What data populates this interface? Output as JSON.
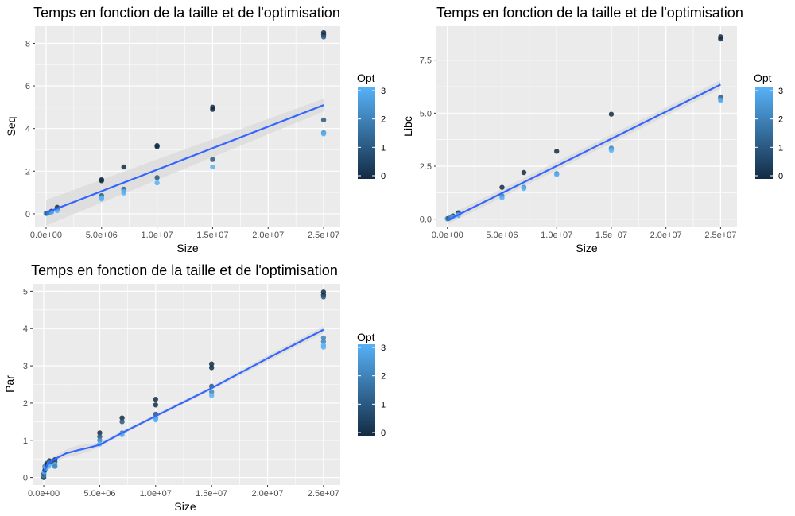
{
  "colors": {
    "panel_bg": "#ebebeb",
    "grid_major": "#ffffff",
    "smooth_line": "#3366ff",
    "ribbon": "#d9d9d9",
    "point_low": "#132b43",
    "point_high": "#56b1f7"
  },
  "chart_data": [
    {
      "type": "scatter",
      "title": "Temps en fonction de la taille et de l'optimisation",
      "xlabel": "Size",
      "ylabel": "Seq",
      "xlim": [
        -1000000,
        26500000
      ],
      "ylim": [
        -0.6,
        8.8
      ],
      "x_ticks": [
        0,
        5000000,
        10000000,
        15000000,
        20000000,
        25000000
      ],
      "x_tick_labels": [
        "0.0e+00",
        "5.0e+06",
        "1.0e+07",
        "1.5e+07",
        "2.0e+07",
        "2.5e+07"
      ],
      "y_ticks": [
        0,
        2,
        4,
        6,
        8
      ],
      "y_tick_labels": [
        "0",
        "2",
        "4",
        "6",
        "8"
      ],
      "legend": {
        "title": "Opt",
        "range": [
          0,
          3
        ],
        "ticks": [
          "0",
          "1",
          "2",
          "3"
        ],
        "placement": "right"
      },
      "points": [
        {
          "x": 0,
          "y": 0.02,
          "opt": 0
        },
        {
          "x": 0,
          "y": 0.01,
          "opt": 3
        },
        {
          "x": 100000,
          "y": 0.03,
          "opt": 1
        },
        {
          "x": 250000,
          "y": 0.05,
          "opt": 2
        },
        {
          "x": 500000,
          "y": 0.12,
          "opt": 0
        },
        {
          "x": 500000,
          "y": 0.08,
          "opt": 3
        },
        {
          "x": 1000000,
          "y": 0.3,
          "opt": 0
        },
        {
          "x": 1000000,
          "y": 0.22,
          "opt": 1
        },
        {
          "x": 1000000,
          "y": 0.15,
          "opt": 3
        },
        {
          "x": 5000000,
          "y": 1.6,
          "opt": 0
        },
        {
          "x": 5000000,
          "y": 1.55,
          "opt": 0
        },
        {
          "x": 5000000,
          "y": 0.85,
          "opt": 1
        },
        {
          "x": 5000000,
          "y": 0.75,
          "opt": 3
        },
        {
          "x": 5000000,
          "y": 0.7,
          "opt": 3
        },
        {
          "x": 7000000,
          "y": 2.2,
          "opt": 0
        },
        {
          "x": 7000000,
          "y": 1.15,
          "opt": 1
        },
        {
          "x": 7000000,
          "y": 1.05,
          "opt": 3
        },
        {
          "x": 7000000,
          "y": 0.98,
          "opt": 3
        },
        {
          "x": 10000000,
          "y": 3.2,
          "opt": 0
        },
        {
          "x": 10000000,
          "y": 3.15,
          "opt": 0
        },
        {
          "x": 10000000,
          "y": 1.7,
          "opt": 1
        },
        {
          "x": 10000000,
          "y": 1.45,
          "opt": 3
        },
        {
          "x": 15000000,
          "y": 5.0,
          "opt": 0
        },
        {
          "x": 15000000,
          "y": 4.9,
          "opt": 0
        },
        {
          "x": 15000000,
          "y": 2.55,
          "opt": 1
        },
        {
          "x": 15000000,
          "y": 2.2,
          "opt": 3
        },
        {
          "x": 25000000,
          "y": 8.5,
          "opt": 0
        },
        {
          "x": 25000000,
          "y": 8.4,
          "opt": 0
        },
        {
          "x": 25000000,
          "y": 8.3,
          "opt": 1
        },
        {
          "x": 25000000,
          "y": 4.4,
          "opt": 1
        },
        {
          "x": 25000000,
          "y": 3.8,
          "opt": 2
        },
        {
          "x": 25000000,
          "y": 3.75,
          "opt": 3
        }
      ],
      "smooth": {
        "x": [
          0,
          25000000
        ],
        "y": [
          0.05,
          5.1
        ],
        "ribbon_lower": [
          -0.55,
          4.8
        ],
        "ribbon_upper": [
          0.65,
          5.4
        ]
      }
    },
    {
      "type": "scatter",
      "title": "Temps en fonction de la taille et de l'optimisation",
      "xlabel": "Size",
      "ylabel": "Libc",
      "xlim": [
        -1000000,
        26500000
      ],
      "ylim": [
        -0.35,
        9.1
      ],
      "x_ticks": [
        0,
        5000000,
        10000000,
        15000000,
        20000000,
        25000000
      ],
      "x_tick_labels": [
        "0.0e+00",
        "5.0e+06",
        "1.0e+07",
        "1.5e+07",
        "2.0e+07",
        "2.5e+07"
      ],
      "y_ticks": [
        0,
        2.5,
        5,
        7.5
      ],
      "y_tick_labels": [
        "0.0",
        "2.5",
        "5.0",
        "7.5"
      ],
      "legend": {
        "title": "Opt",
        "range": [
          0,
          3
        ],
        "ticks": [
          "0",
          "1",
          "2",
          "3"
        ],
        "placement": "right"
      },
      "points": [
        {
          "x": 0,
          "y": 0.02,
          "opt": 0
        },
        {
          "x": 0,
          "y": 0.01,
          "opt": 3
        },
        {
          "x": 100000,
          "y": 0.03,
          "opt": 1
        },
        {
          "x": 250000,
          "y": 0.06,
          "opt": 2
        },
        {
          "x": 500000,
          "y": 0.15,
          "opt": 0
        },
        {
          "x": 500000,
          "y": 0.1,
          "opt": 3
        },
        {
          "x": 1000000,
          "y": 0.3,
          "opt": 0
        },
        {
          "x": 1000000,
          "y": 0.22,
          "opt": 2
        },
        {
          "x": 1000000,
          "y": 0.18,
          "opt": 3
        },
        {
          "x": 5000000,
          "y": 1.5,
          "opt": 0
        },
        {
          "x": 5000000,
          "y": 1.1,
          "opt": 2
        },
        {
          "x": 5000000,
          "y": 1.0,
          "opt": 3
        },
        {
          "x": 7000000,
          "y": 2.2,
          "opt": 0
        },
        {
          "x": 7000000,
          "y": 1.5,
          "opt": 2
        },
        {
          "x": 7000000,
          "y": 1.45,
          "opt": 3
        },
        {
          "x": 10000000,
          "y": 3.2,
          "opt": 0
        },
        {
          "x": 10000000,
          "y": 2.15,
          "opt": 2
        },
        {
          "x": 10000000,
          "y": 2.1,
          "opt": 3
        },
        {
          "x": 15000000,
          "y": 4.95,
          "opt": 0
        },
        {
          "x": 15000000,
          "y": 3.35,
          "opt": 2
        },
        {
          "x": 15000000,
          "y": 3.25,
          "opt": 3
        },
        {
          "x": 25000000,
          "y": 8.6,
          "opt": 0
        },
        {
          "x": 25000000,
          "y": 8.5,
          "opt": 0
        },
        {
          "x": 25000000,
          "y": 5.75,
          "opt": 1
        },
        {
          "x": 25000000,
          "y": 5.65,
          "opt": 2
        },
        {
          "x": 25000000,
          "y": 5.6,
          "opt": 3
        }
      ],
      "smooth": {
        "x": [
          0,
          25000000
        ],
        "y": [
          -0.05,
          6.35
        ],
        "ribbon_lower": [
          -0.25,
          6.15
        ],
        "ribbon_upper": [
          0.15,
          6.55
        ]
      }
    },
    {
      "type": "scatter",
      "title": "Temps en fonction de la taille et de l'optimisation",
      "xlabel": "Size",
      "ylabel": "Par",
      "xlim": [
        -1000000,
        26500000
      ],
      "ylim": [
        -0.2,
        5.2
      ],
      "x_ticks": [
        0,
        5000000,
        10000000,
        15000000,
        20000000,
        25000000
      ],
      "x_tick_labels": [
        "0.0e+00",
        "5.0e+06",
        "1.0e+07",
        "1.5e+07",
        "2.0e+07",
        "2.5e+07"
      ],
      "y_ticks": [
        0,
        1,
        2,
        3,
        4,
        5
      ],
      "y_tick_labels": [
        "0",
        "1",
        "2",
        "3",
        "4",
        "5"
      ],
      "legend": {
        "title": "Opt",
        "range": [
          0,
          3
        ],
        "ticks": [
          "0",
          "1",
          "2",
          "3"
        ],
        "placement": "right"
      },
      "points": [
        {
          "x": 0,
          "y": 0.0,
          "opt": 0
        },
        {
          "x": 0,
          "y": 0.05,
          "opt": 2
        },
        {
          "x": 0,
          "y": 0.1,
          "opt": 1
        },
        {
          "x": 50000,
          "y": 0.15,
          "opt": 3
        },
        {
          "x": 100000,
          "y": 0.2,
          "opt": 0
        },
        {
          "x": 100000,
          "y": 0.3,
          "opt": 2
        },
        {
          "x": 200000,
          "y": 0.25,
          "opt": 3
        },
        {
          "x": 250000,
          "y": 0.38,
          "opt": 1
        },
        {
          "x": 300000,
          "y": 0.35,
          "opt": 0
        },
        {
          "x": 400000,
          "y": 0.3,
          "opt": 3
        },
        {
          "x": 500000,
          "y": 0.45,
          "opt": 0
        },
        {
          "x": 500000,
          "y": 0.4,
          "opt": 2
        },
        {
          "x": 500000,
          "y": 0.35,
          "opt": 3
        },
        {
          "x": 700000,
          "y": 0.42,
          "opt": 1
        },
        {
          "x": 1000000,
          "y": 0.48,
          "opt": 0
        },
        {
          "x": 1000000,
          "y": 0.42,
          "opt": 1
        },
        {
          "x": 1000000,
          "y": 0.35,
          "opt": 3
        },
        {
          "x": 1000000,
          "y": 0.3,
          "opt": 2
        },
        {
          "x": 5000000,
          "y": 1.2,
          "opt": 0
        },
        {
          "x": 5000000,
          "y": 1.1,
          "opt": 1
        },
        {
          "x": 5000000,
          "y": 1.0,
          "opt": 2
        },
        {
          "x": 5000000,
          "y": 0.9,
          "opt": 3
        },
        {
          "x": 7000000,
          "y": 1.6,
          "opt": 0
        },
        {
          "x": 7000000,
          "y": 1.5,
          "opt": 1
        },
        {
          "x": 7000000,
          "y": 1.2,
          "opt": 2
        },
        {
          "x": 7000000,
          "y": 1.15,
          "opt": 3
        },
        {
          "x": 10000000,
          "y": 2.1,
          "opt": 0
        },
        {
          "x": 10000000,
          "y": 1.95,
          "opt": 0
        },
        {
          "x": 10000000,
          "y": 1.7,
          "opt": 1
        },
        {
          "x": 10000000,
          "y": 1.6,
          "opt": 2
        },
        {
          "x": 10000000,
          "y": 1.55,
          "opt": 3
        },
        {
          "x": 15000000,
          "y": 3.05,
          "opt": 0
        },
        {
          "x": 15000000,
          "y": 2.95,
          "opt": 0
        },
        {
          "x": 15000000,
          "y": 2.45,
          "opt": 1
        },
        {
          "x": 15000000,
          "y": 2.3,
          "opt": 2
        },
        {
          "x": 15000000,
          "y": 2.2,
          "opt": 3
        },
        {
          "x": 25000000,
          "y": 4.98,
          "opt": 0
        },
        {
          "x": 25000000,
          "y": 4.9,
          "opt": 0
        },
        {
          "x": 25000000,
          "y": 4.85,
          "opt": 1
        },
        {
          "x": 25000000,
          "y": 3.75,
          "opt": 2
        },
        {
          "x": 25000000,
          "y": 3.65,
          "opt": 2
        },
        {
          "x": 25000000,
          "y": 3.55,
          "opt": 3
        },
        {
          "x": 25000000,
          "y": 3.5,
          "opt": 3
        }
      ],
      "smooth": {
        "x": [
          0,
          250000,
          500000,
          1000000,
          2000000,
          3000000,
          4000000,
          5000000,
          7000000,
          10000000,
          15000000,
          20000000,
          25000000
        ],
        "y": [
          0.15,
          0.3,
          0.4,
          0.5,
          0.65,
          0.73,
          0.8,
          0.88,
          1.2,
          1.65,
          2.4,
          3.2,
          3.97
        ],
        "ribbon_lower": [
          0.02,
          0.2,
          0.32,
          0.43,
          0.55,
          0.6,
          0.7,
          0.82,
          1.15,
          1.6,
          2.35,
          3.12,
          3.88
        ],
        "ribbon_upper": [
          0.28,
          0.4,
          0.48,
          0.57,
          0.75,
          0.86,
          0.9,
          0.94,
          1.25,
          1.7,
          2.45,
          3.28,
          4.06
        ]
      }
    }
  ]
}
